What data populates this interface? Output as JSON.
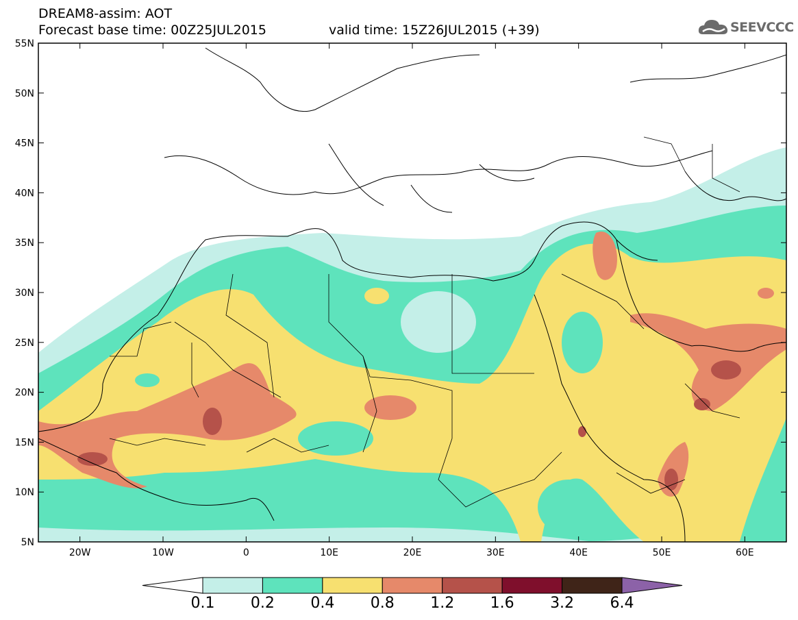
{
  "header": {
    "line1": "DREAM8-assim: AOT",
    "line2_left": "Forecast base time: 00Z25JUL2015",
    "line2_right": "valid time: 15Z26JUL2015 (+39)"
  },
  "logo": {
    "text": "SEEVCCC",
    "icon": "cloud-icon"
  },
  "map": {
    "extent": {
      "lon_min": -25,
      "lon_max": 65,
      "lat_min": 5,
      "lat_max": 55
    },
    "lat_ticks": [
      {
        "value": 55,
        "label": "55N"
      },
      {
        "value": 50,
        "label": "50N"
      },
      {
        "value": 45,
        "label": "45N"
      },
      {
        "value": 40,
        "label": "40N"
      },
      {
        "value": 35,
        "label": "35N"
      },
      {
        "value": 30,
        "label": "30N"
      },
      {
        "value": 25,
        "label": "25N"
      },
      {
        "value": 20,
        "label": "20N"
      },
      {
        "value": 15,
        "label": "15N"
      },
      {
        "value": 10,
        "label": "10N"
      },
      {
        "value": 5,
        "label": "5N"
      }
    ],
    "lon_ticks": [
      {
        "value": -20,
        "label": "20W"
      },
      {
        "value": -10,
        "label": "10W"
      },
      {
        "value": 0,
        "label": "0"
      },
      {
        "value": 10,
        "label": "10E"
      },
      {
        "value": 20,
        "label": "20E"
      },
      {
        "value": 30,
        "label": "30E"
      },
      {
        "value": 40,
        "label": "40E"
      },
      {
        "value": 50,
        "label": "50E"
      },
      {
        "value": 60,
        "label": "60E"
      }
    ]
  },
  "colorbar": {
    "labels": [
      "0.1",
      "0.2",
      "0.4",
      "0.8",
      "1.2",
      "1.6",
      "3.2",
      "6.4"
    ],
    "colors": [
      "#ffffff",
      "#c4efe8",
      "#5ee3bc",
      "#f7e070",
      "#e6896a",
      "#b5524a",
      "#7f0f2c",
      "#3f2418",
      "#8c62a8"
    ]
  }
}
